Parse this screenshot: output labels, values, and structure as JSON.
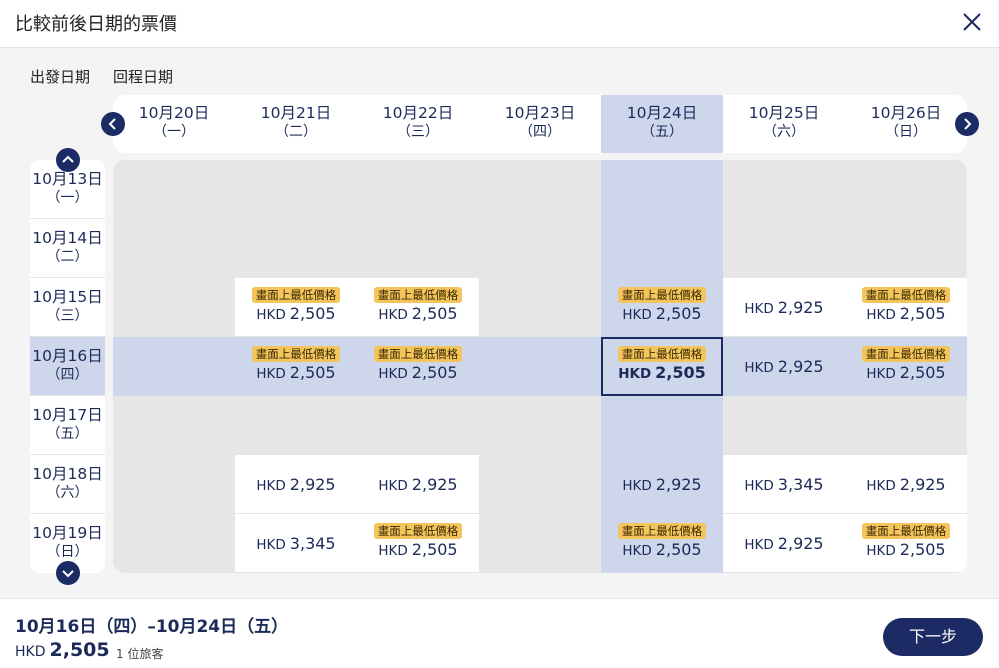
{
  "dialog": {
    "title": "比較前後日期的票價"
  },
  "labels": {
    "departure": "出發日期",
    "return": "回程日期"
  },
  "departure_dates": [
    {
      "date": "10月20日",
      "weekday": "（一）"
    },
    {
      "date": "10月21日",
      "weekday": "（二）"
    },
    {
      "date": "10月22日",
      "weekday": "（三）"
    },
    {
      "date": "10月23日",
      "weekday": "（四）"
    },
    {
      "date": "10月24日",
      "weekday": "（五）",
      "selected": true
    },
    {
      "date": "10月25日",
      "weekday": "（六）"
    },
    {
      "date": "10月26日",
      "weekday": "（日）"
    }
  ],
  "return_dates": [
    {
      "date": "10月13日",
      "weekday": "（一）"
    },
    {
      "date": "10月14日",
      "weekday": "（二）"
    },
    {
      "date": "10月15日",
      "weekday": "（三）"
    },
    {
      "date": "10月16日",
      "weekday": "（四）",
      "selected": true
    },
    {
      "date": "10月17日",
      "weekday": "（五）"
    },
    {
      "date": "10月18日",
      "weekday": "（六）"
    },
    {
      "date": "10月19日",
      "weekday": "（日）"
    }
  ],
  "currency": "HKD",
  "badge_text": "畫面上最低價格",
  "fares": [
    [
      null,
      null,
      null,
      null,
      null,
      null,
      null
    ],
    [
      null,
      null,
      null,
      null,
      null,
      null,
      null
    ],
    [
      null,
      {
        "amount": "2,505",
        "lowest": true
      },
      {
        "amount": "2,505",
        "lowest": true
      },
      null,
      {
        "amount": "2,505",
        "lowest": true
      },
      {
        "amount": "2,925"
      },
      {
        "amount": "2,505",
        "lowest": true
      }
    ],
    [
      null,
      {
        "amount": "2,505",
        "lowest": true
      },
      {
        "amount": "2,505",
        "lowest": true
      },
      null,
      {
        "amount": "2,505",
        "lowest": true,
        "chosen": true
      },
      {
        "amount": "2,925"
      },
      {
        "amount": "2,505",
        "lowest": true
      }
    ],
    [
      null,
      null,
      null,
      null,
      null,
      null,
      null
    ],
    [
      null,
      {
        "amount": "2,925"
      },
      {
        "amount": "2,925"
      },
      null,
      {
        "amount": "2,925"
      },
      {
        "amount": "3,345"
      },
      {
        "amount": "2,925"
      }
    ],
    [
      null,
      {
        "amount": "3,345"
      },
      {
        "amount": "2,505",
        "lowest": true
      },
      null,
      {
        "amount": "2,505",
        "lowest": true
      },
      {
        "amount": "2,925"
      },
      {
        "amount": "2,505",
        "lowest": true
      }
    ]
  ],
  "summary": {
    "dates": "10月16日（四）–10月24日（五）",
    "currency": "HKD",
    "amount": "2,505",
    "passengers": "1 位旅客"
  },
  "next_button": "下一步",
  "colors": {
    "navy": "#1c2b64",
    "badge": "#f4c55c",
    "selected_band": "#cdd6ea",
    "unavailable": "#e6e6e6"
  }
}
